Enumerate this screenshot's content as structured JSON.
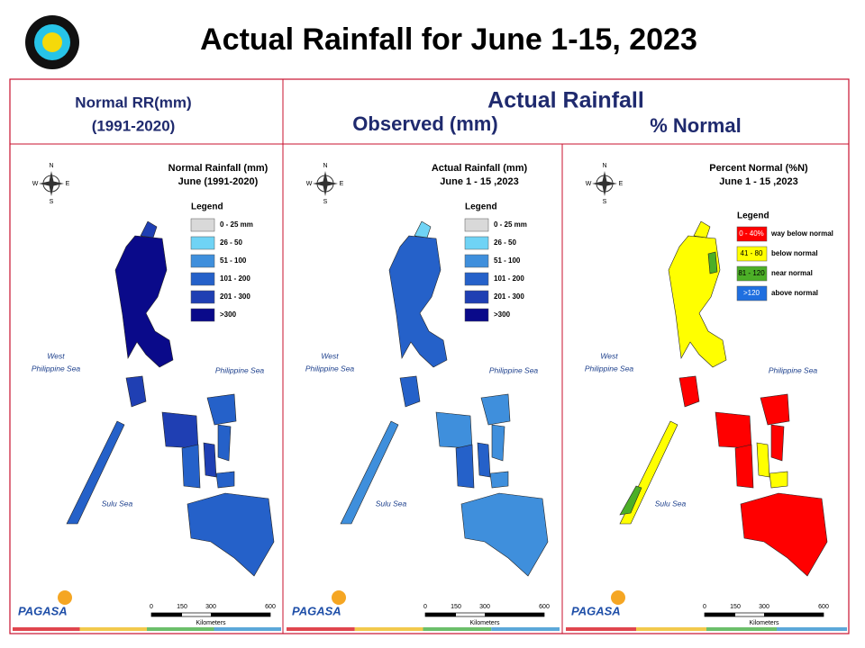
{
  "header": {
    "title": "Actual Rainfall for June 1-15, 2023"
  },
  "columns": {
    "normal": [
      "Normal RR(mm)",
      "(1991-2020)"
    ],
    "actual": "Actual Rainfall",
    "observed": "Observed (mm)",
    "percent": "% Normal"
  },
  "panels": [
    {
      "title": [
        "Normal Rainfall (mm)",
        "June (1991-2020)"
      ],
      "legend_title": "Legend",
      "legend": [
        {
          "label": "0 - 25 mm",
          "color": "#d9d9d9"
        },
        {
          "label": "26 - 50",
          "color": "#6fd3f5"
        },
        {
          "label": "51 - 100",
          "color": "#3f8fdc"
        },
        {
          "label": "101 - 200",
          "color": "#2561c9"
        },
        {
          "label": "201 - 300",
          "color": "#1f3fb3"
        },
        {
          "label": ">300",
          "color": "#0a0a8a"
        }
      ],
      "seas": [
        "West",
        "Philippine Sea",
        "Philippine Sea",
        "Sulu Sea"
      ],
      "compass": [
        "N",
        "S",
        "E",
        "W"
      ],
      "scale": [
        "0",
        "150",
        "300",
        "600",
        "Kilometers"
      ],
      "logo": "PAGASA"
    },
    {
      "title": [
        "Actual Rainfall (mm)",
        "June 1 - 15 ,2023"
      ],
      "legend_title": "Legend",
      "legend": [
        {
          "label": "0 - 25 mm",
          "color": "#d9d9d9"
        },
        {
          "label": "26 - 50",
          "color": "#6fd3f5"
        },
        {
          "label": "51 - 100",
          "color": "#3f8fdc"
        },
        {
          "label": "101 - 200",
          "color": "#2561c9"
        },
        {
          "label": "201 - 300",
          "color": "#1f3fb3"
        },
        {
          "label": ">300",
          "color": "#0a0a8a"
        }
      ],
      "seas": [
        "West",
        "Philippine Sea",
        "Philippine Sea",
        "Sulu Sea"
      ],
      "compass": [
        "N",
        "S",
        "E",
        "W"
      ],
      "scale": [
        "0",
        "150",
        "300",
        "600",
        "Kilometers"
      ],
      "logo": "PAGASA"
    },
    {
      "title": [
        "Percent Normal (%N)",
        "June 1 - 15 ,2023"
      ],
      "legend_title": "Legend",
      "legend": [
        {
          "label": "0 - 40%",
          "color": "#ff0000",
          "description": "way below normal"
        },
        {
          "label": "41 - 80",
          "color": "#ffff00",
          "description": "below normal"
        },
        {
          "label": "81 - 120",
          "color": "#4caf27",
          "description": "near normal"
        },
        {
          "label": ">120",
          "color": "#1f6fe0",
          "description": "above normal"
        }
      ],
      "seas": [
        "West",
        "Philippine Sea",
        "Philippine Sea",
        "Sulu Sea"
      ],
      "compass": [
        "N",
        "S",
        "E",
        "W"
      ],
      "scale": [
        "0",
        "150",
        "300",
        "600",
        "Kilometers"
      ],
      "logo": "PAGASA"
    }
  ]
}
